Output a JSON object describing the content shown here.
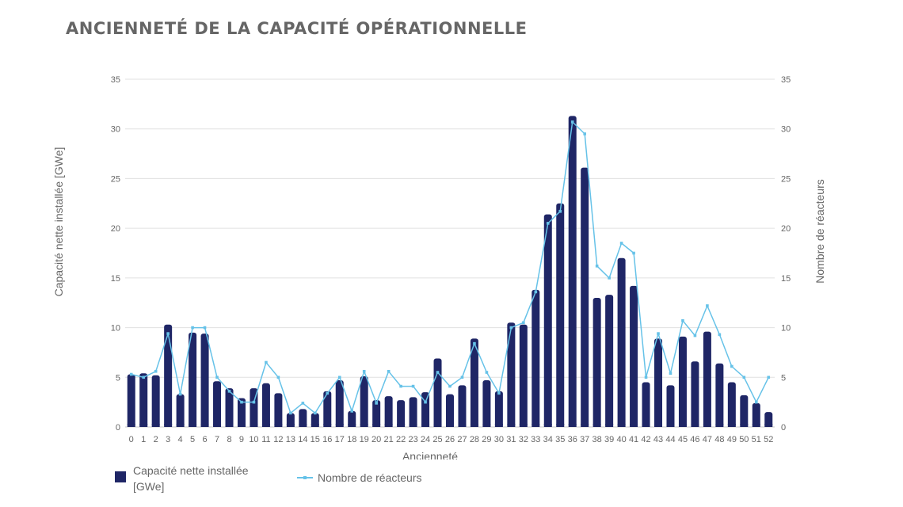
{
  "page_title": "ANCIENNETÉ DE LA CAPACITÉ OPÉRATIONNELLE",
  "colors": {
    "bar": "#1f2666",
    "line": "#66c2e8",
    "grid": "#e0e0e0",
    "text": "#666666"
  },
  "chart_data": {
    "type": "bar",
    "title": "ANCIENNETÉ DE LA CAPACITÉ OPÉRATIONNELLE",
    "xlabel": "Ancienneté",
    "ylabel": "Capacité nette installée [GWe]",
    "y2label": "Nombre de réacteurs",
    "ylim": [
      0,
      35
    ],
    "y2lim": [
      0,
      35
    ],
    "yticks": [
      "0",
      "5",
      "10",
      "15",
      "20",
      "25",
      "30",
      "35"
    ],
    "y2ticks": [
      "0",
      "5",
      "10",
      "15",
      "20",
      "25",
      "30",
      "35"
    ],
    "grid": true,
    "legend_position": "bottom-left",
    "categories": [
      "0",
      "1",
      "2",
      "3",
      "4",
      "5",
      "6",
      "7",
      "8",
      "9",
      "10",
      "11",
      "12",
      "13",
      "14",
      "15",
      "16",
      "17",
      "18",
      "19",
      "20",
      "21",
      "22",
      "23",
      "24",
      "25",
      "26",
      "27",
      "28",
      "29",
      "30",
      "31",
      "32",
      "33",
      "34",
      "35",
      "36",
      "37",
      "38",
      "39",
      "40",
      "41",
      "42",
      "43",
      "44",
      "45",
      "46",
      "47",
      "48",
      "49",
      "50",
      "51",
      "52"
    ],
    "series": [
      {
        "name": "Capacité nette installée [GWe]",
        "type": "bar",
        "axis": "left",
        "values": [
          5.3,
          5.4,
          5.2,
          10.3,
          3.3,
          9.5,
          9.4,
          4.6,
          3.9,
          2.9,
          3.9,
          4.4,
          3.4,
          1.4,
          1.8,
          1.4,
          3.6,
          4.7,
          1.6,
          5.1,
          2.7,
          3.1,
          2.7,
          3.0,
          3.5,
          6.9,
          3.3,
          4.2,
          8.9,
          4.7,
          3.6,
          10.5,
          10.3,
          13.8,
          21.4,
          22.5,
          31.3,
          26.1,
          13.0,
          13.3,
          17.0,
          14.2,
          4.5,
          8.9,
          4.2,
          9.1,
          6.6,
          9.6,
          6.4,
          4.5,
          3.2,
          2.4,
          1.5
        ]
      },
      {
        "name": "Nombre de réacteurs",
        "type": "line",
        "axis": "right",
        "values": [
          5.3,
          5.0,
          5.6,
          9.4,
          3.3,
          10.0,
          10.0,
          5.0,
          3.6,
          2.5,
          2.5,
          6.5,
          5.0,
          1.4,
          2.4,
          1.4,
          3.4,
          5.0,
          1.6,
          5.6,
          2.4,
          5.6,
          4.1,
          4.1,
          2.5,
          5.5,
          4.1,
          5.0,
          8.4,
          5.5,
          3.4,
          10.0,
          10.5,
          13.6,
          20.5,
          21.7,
          30.7,
          29.5,
          16.2,
          15.0,
          18.5,
          17.5,
          5.0,
          9.4,
          5.4,
          10.7,
          9.2,
          12.2,
          9.3,
          6.1,
          5.0,
          2.5,
          5.0
        ]
      }
    ]
  }
}
